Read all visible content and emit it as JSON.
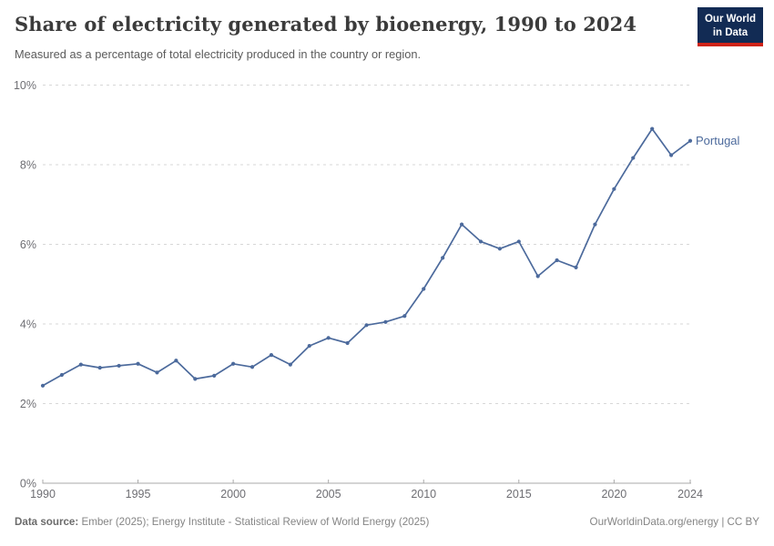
{
  "header": {
    "title": "Share of electricity generated by bioenergy, 1990 to 2024",
    "subtitle": "Measured as a percentage of total electricity produced in the country or region.",
    "logo": {
      "line1": "Our World",
      "line2": "in Data"
    }
  },
  "chart_data": {
    "type": "line",
    "title": "Share of electricity generated by bioenergy, 1990 to 2024",
    "xlabel": "",
    "ylabel": "",
    "xlim": [
      1990,
      2024
    ],
    "ylim": [
      0,
      10
    ],
    "grid": "horizontal-dashed",
    "legend_position": "end-of-line-label",
    "x_ticks": [
      1990,
      1995,
      2000,
      2005,
      2010,
      2015,
      2020,
      2024
    ],
    "x_tick_labels": [
      "1990",
      "1995",
      "2000",
      "2005",
      "2010",
      "2015",
      "2020",
      "2024"
    ],
    "y_ticks": [
      0,
      2,
      4,
      6,
      8,
      10
    ],
    "y_tick_labels": [
      "0%",
      "2%",
      "4%",
      "6%",
      "8%",
      "10%"
    ],
    "x": [
      1990,
      1991,
      1992,
      1993,
      1994,
      1995,
      1996,
      1997,
      1998,
      1999,
      2000,
      2001,
      2002,
      2003,
      2004,
      2005,
      2006,
      2007,
      2008,
      2009,
      2010,
      2011,
      2012,
      2013,
      2014,
      2015,
      2016,
      2017,
      2018,
      2019,
      2020,
      2021,
      2022,
      2023,
      2024
    ],
    "series": [
      {
        "name": "Portugal",
        "color": "#4c6a9c",
        "values": [
          2.45,
          2.72,
          2.98,
          2.9,
          2.95,
          3.0,
          2.78,
          3.08,
          2.62,
          2.7,
          3.0,
          2.92,
          3.22,
          2.98,
          3.45,
          3.65,
          3.52,
          3.97,
          4.05,
          4.2,
          4.88,
          5.66,
          6.5,
          6.07,
          5.89,
          6.07,
          5.2,
          5.6,
          5.42,
          6.5,
          7.39,
          8.17,
          8.9,
          8.24,
          8.6
        ]
      }
    ]
  },
  "footer": {
    "source_label": "Data source:",
    "source_text": " Ember (2025); Energy Institute - Statistical Review of World Energy (2025)",
    "credit": "OurWorldinData.org/energy | CC BY"
  },
  "colors": {
    "line": "#4c6a9c",
    "entity_label": "#4c6a9c",
    "gridline": "#d7d7d7",
    "axis": "#a8a8a8",
    "tick_label": "#6e6e73",
    "logo_bg": "#122b54",
    "logo_stripe": "#cf2318"
  }
}
